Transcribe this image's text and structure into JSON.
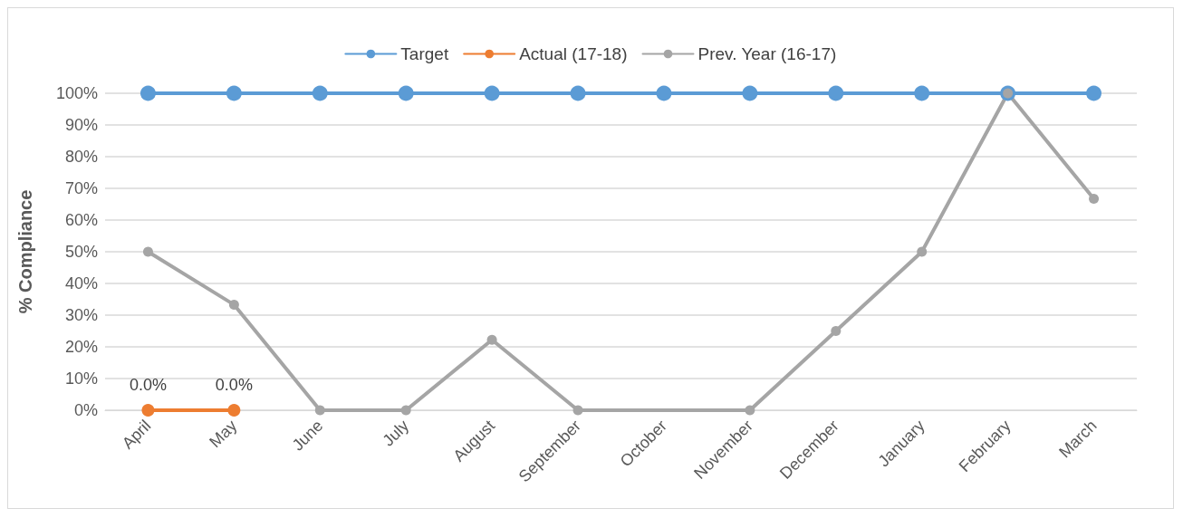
{
  "chart_data": {
    "type": "line",
    "ylabel": "% Compliance",
    "categories": [
      "April",
      "May",
      "June",
      "July",
      "August",
      "September",
      "October",
      "November",
      "December",
      "January",
      "February",
      "March"
    ],
    "series": [
      {
        "name": "Target",
        "color": "#5b9bd5",
        "values": [
          100,
          100,
          100,
          100,
          100,
          100,
          100,
          100,
          100,
          100,
          100,
          100
        ]
      },
      {
        "name": "Actual (17-18)",
        "color": "#ed7d31",
        "values": [
          0,
          0,
          null,
          null,
          null,
          null,
          null,
          null,
          null,
          null,
          null,
          null
        ],
        "value_labels": [
          "0.0%",
          "0.0%",
          null,
          null,
          null,
          null,
          null,
          null,
          null,
          null,
          null,
          null
        ]
      },
      {
        "name": "Prev. Year (16-17)",
        "color": "#a5a5a5",
        "values": [
          50,
          33.3,
          0,
          0,
          22.2,
          0,
          null,
          0,
          25,
          50,
          100,
          66.7
        ]
      }
    ],
    "ylim": [
      0,
      100
    ],
    "yticks": [
      {
        "value": 0,
        "label": "0%"
      },
      {
        "value": 10,
        "label": "10%"
      },
      {
        "value": 20,
        "label": "20%"
      },
      {
        "value": 30,
        "label": "30%"
      },
      {
        "value": 40,
        "label": "40%"
      },
      {
        "value": 50,
        "label": "50%"
      },
      {
        "value": 60,
        "label": "60%"
      },
      {
        "value": 70,
        "label": "70%"
      },
      {
        "value": 80,
        "label": "80%"
      },
      {
        "value": 90,
        "label": "90%"
      },
      {
        "value": 100,
        "label": "100%"
      }
    ],
    "grid": "y",
    "legend": "top",
    "marker": "circle",
    "line_style": "solid"
  }
}
